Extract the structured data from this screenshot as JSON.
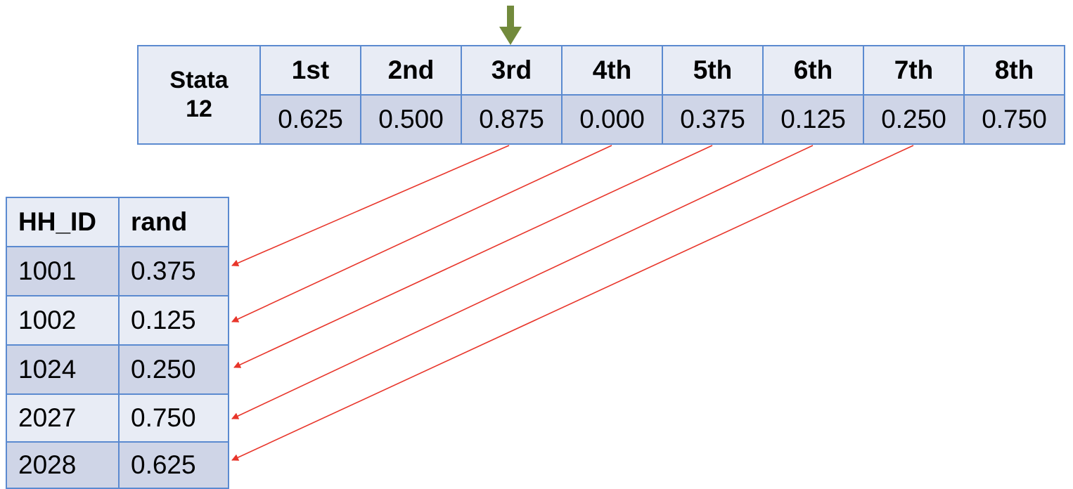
{
  "top_table": {
    "label_line1": "Stata",
    "label_line2": "12",
    "headers": [
      "1st",
      "2nd",
      "3rd",
      "4th",
      "5th",
      "6th",
      "7th",
      "8th"
    ],
    "values": [
      "0.625",
      "0.500",
      "0.875",
      "0.000",
      "0.375",
      "0.125",
      "0.250",
      "0.750"
    ]
  },
  "bottom_table": {
    "headers": [
      "HH_ID",
      "rand"
    ],
    "rows": [
      {
        "id": "1001",
        "rand": "0.375"
      },
      {
        "id": "1002",
        "rand": "0.125"
      },
      {
        "id": "1024",
        "rand": "0.250"
      },
      {
        "id": "2027",
        "rand": "0.750"
      },
      {
        "id": "2028",
        "rand": "0.625"
      }
    ]
  },
  "colors": {
    "border": "#5b8ad0",
    "cell_light": "#e8ecf5",
    "cell_dark": "#cfd5e7",
    "pointer_arrow": "#728a3c",
    "link_arrow": "#e8352a"
  }
}
